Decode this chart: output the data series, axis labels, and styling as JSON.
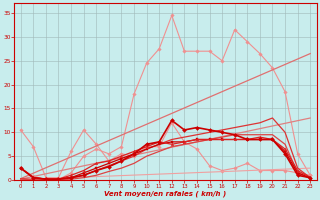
{
  "xlabel": "Vent moyen/en rafales ( km/h )",
  "xlim": [
    -0.5,
    23.5
  ],
  "ylim": [
    0,
    37
  ],
  "yticks": [
    0,
    5,
    10,
    15,
    20,
    25,
    30,
    35
  ],
  "xticks": [
    0,
    1,
    2,
    3,
    4,
    5,
    6,
    7,
    8,
    9,
    10,
    11,
    12,
    13,
    14,
    15,
    16,
    17,
    18,
    19,
    20,
    21,
    22,
    23
  ],
  "bg_color": "#c8eded",
  "grid_color": "#a0b8b8",
  "lines": [
    {
      "x": [
        0,
        1,
        2,
        3,
        4,
        5,
        6,
        7,
        8,
        9,
        10,
        11,
        12,
        13,
        14,
        15,
        16,
        17,
        18,
        19,
        20,
        21,
        22,
        23
      ],
      "y": [
        2.5,
        0.8,
        0.1,
        0.1,
        1.5,
        5.0,
        6.5,
        5.5,
        7.0,
        18.0,
        24.5,
        27.5,
        34.5,
        27.0,
        27.0,
        27.0,
        25.0,
        31.5,
        29.0,
        26.5,
        23.5,
        18.5,
        5.5,
        1.0
      ],
      "color": "#f09090",
      "lw": 0.8,
      "marker": "D",
      "ms": 1.8,
      "zorder": 2
    },
    {
      "x": [
        0,
        1,
        2,
        3,
        4,
        5,
        6,
        7,
        8,
        9,
        10,
        11,
        12,
        13,
        14,
        15,
        16,
        17,
        18,
        19,
        20,
        21,
        22,
        23
      ],
      "y": [
        10.5,
        7.0,
        0.5,
        0.5,
        6.0,
        10.5,
        7.5,
        4.0,
        5.5,
        5.0,
        7.0,
        7.0,
        12.0,
        8.0,
        6.5,
        3.0,
        2.0,
        2.5,
        3.5,
        2.0,
        2.0,
        2.0,
        1.5,
        1.0
      ],
      "color": "#f09090",
      "lw": 0.8,
      "marker": "D",
      "ms": 1.8,
      "zorder": 2
    },
    {
      "x": [
        0,
        23
      ],
      "y": [
        0.3,
        26.5
      ],
      "color": "#e07070",
      "lw": 0.9,
      "marker": null,
      "ms": 0,
      "zorder": 3
    },
    {
      "x": [
        0,
        23
      ],
      "y": [
        0.2,
        13.0
      ],
      "color": "#e08080",
      "lw": 0.9,
      "marker": null,
      "ms": 0,
      "zorder": 3
    },
    {
      "x": [
        0,
        23
      ],
      "y": [
        0.1,
        2.5
      ],
      "color": "#f0a0a0",
      "lw": 0.8,
      "marker": null,
      "ms": 0,
      "zorder": 2
    },
    {
      "x": [
        0,
        1,
        2,
        3,
        4,
        5,
        6,
        7,
        8,
        9,
        10,
        11,
        12,
        13,
        14,
        15,
        16,
        17,
        18,
        19,
        20,
        21,
        22,
        23
      ],
      "y": [
        2.5,
        0.5,
        0.2,
        0.2,
        0.5,
        1.0,
        2.0,
        2.8,
        4.0,
        5.5,
        7.5,
        8.0,
        12.5,
        10.5,
        11.0,
        10.5,
        10.0,
        9.5,
        8.5,
        8.5,
        8.5,
        5.5,
        1.0,
        0.5
      ],
      "color": "#cc0000",
      "lw": 1.2,
      "marker": "D",
      "ms": 2.0,
      "zorder": 6
    },
    {
      "x": [
        0,
        1,
        2,
        3,
        4,
        5,
        6,
        7,
        8,
        9,
        10,
        11,
        12,
        13,
        14,
        15,
        16,
        17,
        18,
        19,
        20,
        21,
        22,
        23
      ],
      "y": [
        2.5,
        0.5,
        0.2,
        0.2,
        0.5,
        1.5,
        2.5,
        3.5,
        4.5,
        5.5,
        6.5,
        7.5,
        8.0,
        8.0,
        8.5,
        8.5,
        8.5,
        8.5,
        8.5,
        8.5,
        8.5,
        6.0,
        1.5,
        0.5
      ],
      "color": "#cc0000",
      "lw": 0.9,
      "marker": "s",
      "ms": 1.8,
      "zorder": 5
    },
    {
      "x": [
        0,
        1,
        2,
        3,
        4,
        5,
        6,
        7,
        8,
        9,
        10,
        11,
        12,
        13,
        14,
        15,
        16,
        17,
        18,
        19,
        20,
        21,
        22,
        23
      ],
      "y": [
        2.5,
        0.5,
        0.2,
        0.2,
        1.0,
        2.0,
        3.5,
        4.0,
        5.0,
        6.0,
        7.0,
        8.0,
        7.5,
        8.0,
        8.5,
        8.5,
        8.5,
        8.5,
        8.5,
        9.0,
        8.5,
        6.5,
        2.0,
        0.5
      ],
      "color": "#dd2222",
      "lw": 0.9,
      "marker": "^",
      "ms": 1.8,
      "zorder": 5
    },
    {
      "x": [
        0,
        1,
        2,
        3,
        4,
        5,
        6,
        7,
        8,
        9,
        10,
        11,
        12,
        13,
        14,
        15,
        16,
        17,
        18,
        19,
        20,
        21,
        22,
        23
      ],
      "y": [
        0.3,
        0.1,
        0.1,
        0.1,
        0.5,
        1.0,
        2.0,
        3.0,
        4.0,
        5.0,
        6.5,
        7.5,
        8.5,
        9.0,
        9.5,
        10.0,
        10.5,
        11.0,
        11.5,
        12.0,
        13.0,
        10.0,
        2.5,
        0.5
      ],
      "color": "#dd3333",
      "lw": 0.9,
      "marker": null,
      "ms": 0,
      "zorder": 4
    },
    {
      "x": [
        0,
        1,
        2,
        3,
        4,
        5,
        6,
        7,
        8,
        9,
        10,
        11,
        12,
        13,
        14,
        15,
        16,
        17,
        18,
        19,
        20,
        21,
        22,
        23
      ],
      "y": [
        0.2,
        0.1,
        0.0,
        0.0,
        0.2,
        0.5,
        1.0,
        1.8,
        2.5,
        3.5,
        5.0,
        6.0,
        7.0,
        7.5,
        8.0,
        8.5,
        9.0,
        9.5,
        9.5,
        9.5,
        9.5,
        7.5,
        1.5,
        0.3
      ],
      "color": "#dd4444",
      "lw": 0.9,
      "marker": null,
      "ms": 0,
      "zorder": 4
    }
  ]
}
